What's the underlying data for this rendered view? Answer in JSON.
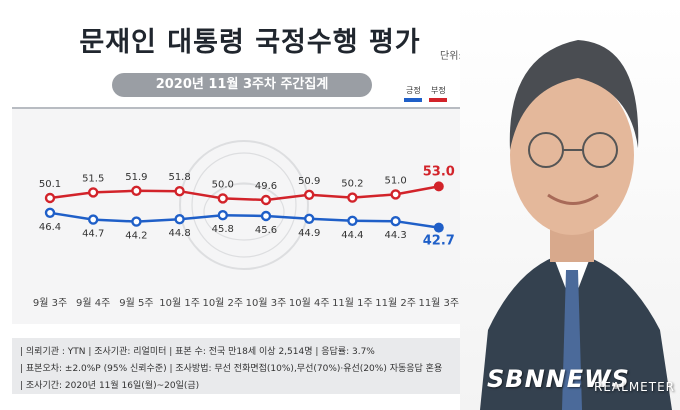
{
  "header": {
    "title": "문재인 대통령 국정수행 평가",
    "unit": "단위: %",
    "subtitle": "2020년 11월 3주차 주간집계"
  },
  "chart_data": {
    "type": "line",
    "categories": [
      "9월 3주",
      "9월 4주",
      "9월 5주",
      "10월 1주",
      "10월 2주",
      "10월 3주",
      "10월 4주",
      "11월 1주",
      "11월 2주",
      "11월 3주"
    ],
    "series": [
      {
        "name": "부정",
        "color": "#d2232a",
        "values": [
          50.1,
          51.5,
          51.9,
          51.8,
          50.0,
          49.6,
          50.9,
          50.2,
          51.0,
          53.0
        ]
      },
      {
        "name": "긍정",
        "color": "#1f5fc8",
        "values": [
          46.4,
          44.7,
          44.2,
          44.8,
          45.8,
          45.6,
          44.9,
          44.4,
          44.3,
          42.7
        ]
      }
    ],
    "legend": [
      "긍정",
      "부정"
    ],
    "legend_position": "top-right"
  },
  "info": {
    "line1": "| 의뢰기관 : YTN  | 조사기관: 리얼미터  | 표본 수: 전국 만18세 이상 2,514명  | 응답률: 3.7%",
    "line2": "| 표본오차: ±2.0%P (95% 신뢰수준)  | 조사방법: 무선 전화면접(10%),무선(70%)·유선(20%) 자동응답 혼용",
    "line3": "| 조사기간: 2020년 11월 16일(월)~20일(금)"
  },
  "brand": {
    "logo": "SBNNEWS",
    "watermark": "REALMETER"
  }
}
